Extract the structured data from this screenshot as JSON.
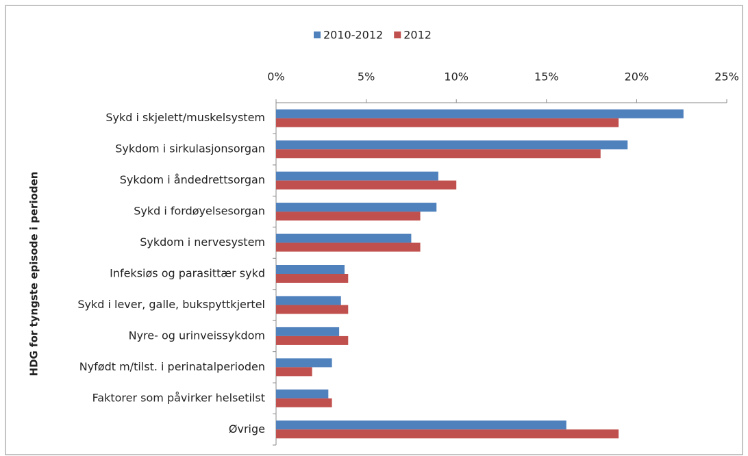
{
  "chart_data": {
    "type": "hbar",
    "ylabel": "HDG for tyngste episode i perioden",
    "categories": [
      "Sykd i skjelett/muskelsystem",
      "Sykdom i sirkulasjonsorgan",
      "Sykdom i åndedrettsorgan",
      "Sykd i fordøyelsesorgan",
      "Sykdom i nervesystem",
      "Infeksiøs og parasittær sykd",
      "Sykd i lever, galle, bukspyttkjertel",
      "Nyre- og urinveissykdom",
      "Nyfødt m/tilst. i perinatalperioden",
      "Faktorer som påvirker helsetilst",
      "Øvrige"
    ],
    "series": [
      {
        "name": "2010-2012",
        "color": "#4f81bd",
        "values": [
          22.6,
          19.5,
          9.0,
          8.9,
          7.5,
          3.8,
          3.6,
          3.5,
          3.1,
          2.9,
          16.1
        ]
      },
      {
        "name": "2012",
        "color": "#c0504d",
        "values": [
          19.0,
          18.0,
          10.0,
          8.0,
          8.0,
          4.0,
          4.0,
          4.0,
          2.0,
          3.1,
          19.0
        ]
      }
    ],
    "xlim": [
      0,
      25
    ],
    "xticks": [
      {
        "value": 0,
        "label": "0%"
      },
      {
        "value": 5,
        "label": "5%"
      },
      {
        "value": 10,
        "label": "10%"
      },
      {
        "value": 15,
        "label": "15%"
      },
      {
        "value": 20,
        "label": "20%"
      },
      {
        "value": 25,
        "label": "25%"
      }
    ],
    "grid": false,
    "legend": "top"
  }
}
